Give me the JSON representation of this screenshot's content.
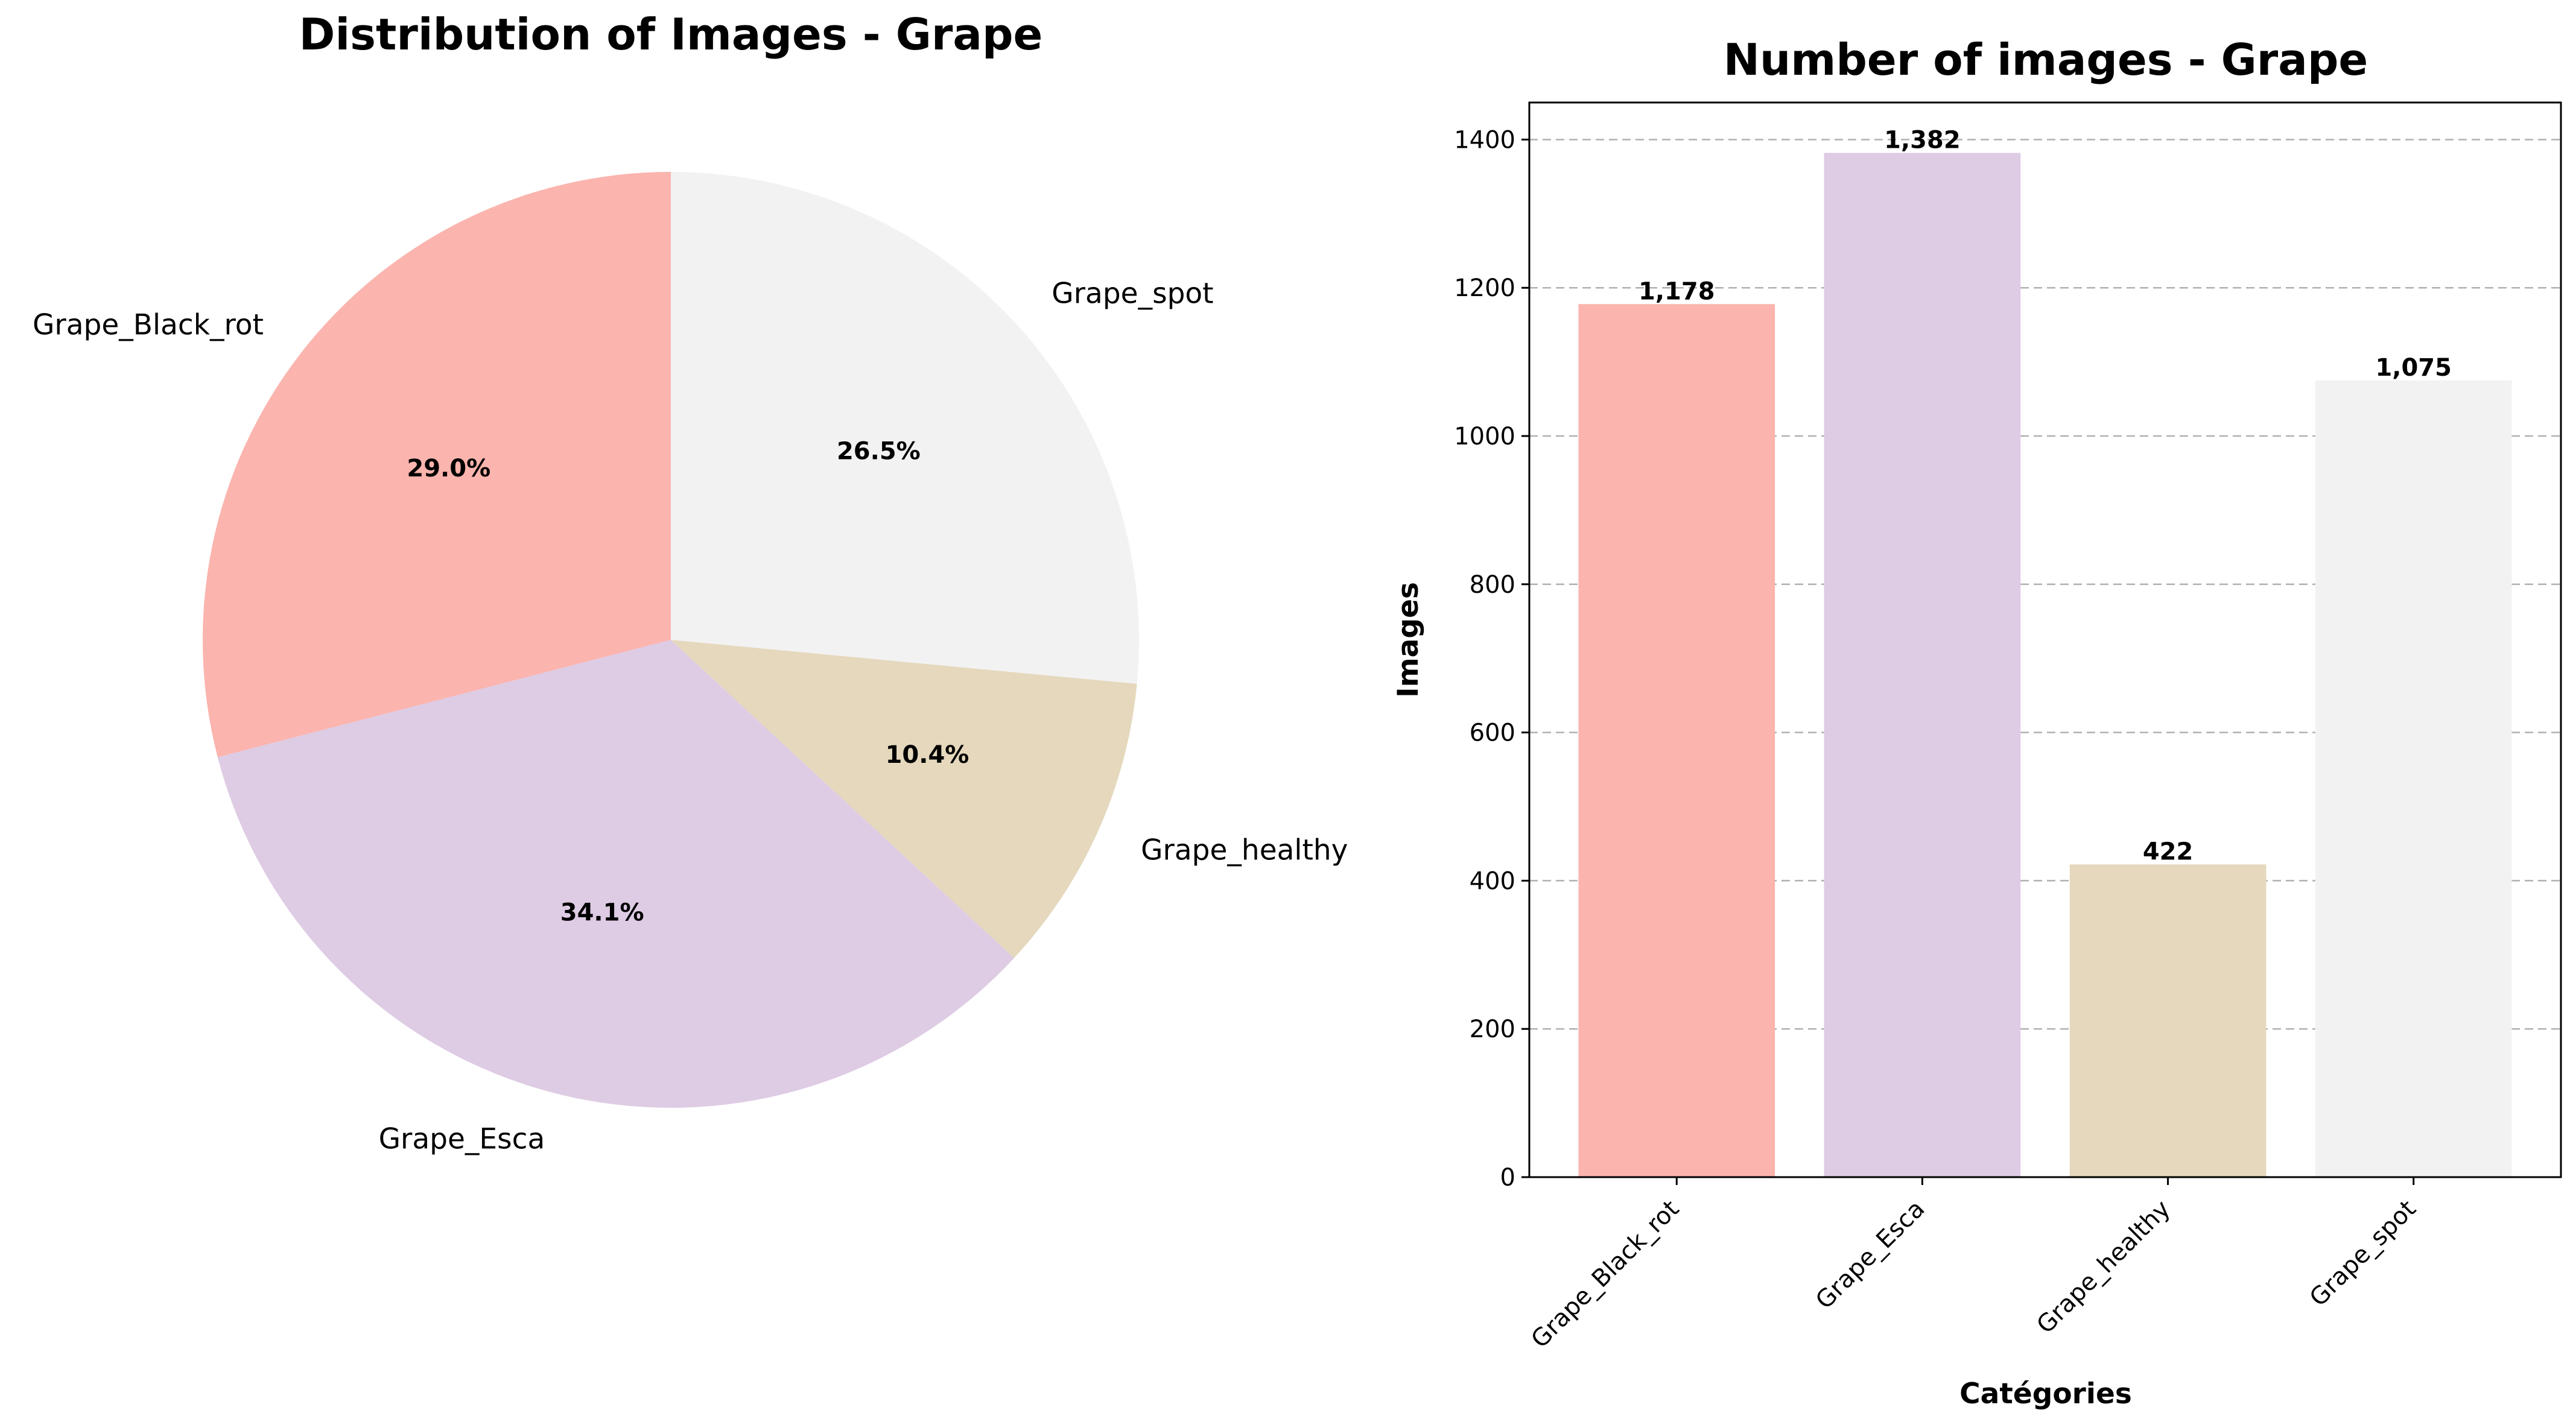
{
  "chart_data": [
    {
      "type": "pie",
      "title": "Distribution of Images - Grape",
      "start_angle_deg": 90,
      "direction": "counterclockwise",
      "slices": [
        {
          "label": "Grape_Black_rot",
          "value": 1178,
          "pct_label": "29.0%",
          "color": "#fbb4ae"
        },
        {
          "label": "Grape_Esca",
          "value": 1382,
          "pct_label": "34.1%",
          "color": "#decbe4"
        },
        {
          "label": "Grape_healthy",
          "value": 422,
          "pct_label": "10.4%",
          "color": "#e5d8bd"
        },
        {
          "label": "Grape_spot",
          "value": 1075,
          "pct_label": "26.5%",
          "color": "#f2f2f2"
        }
      ]
    },
    {
      "type": "bar",
      "title": "Number of images - Grape",
      "xlabel": "Catégories",
      "ylabel": "Images",
      "categories": [
        "Grape_Black_rot",
        "Grape_Esca",
        "Grape_healthy",
        "Grape_spot"
      ],
      "values": [
        1178,
        1382,
        422,
        1075
      ],
      "value_labels": [
        "1,178",
        "1,382",
        "422",
        "1,075"
      ],
      "colors": [
        "#fbb4ae",
        "#decbe4",
        "#e5d8bd",
        "#f2f2f2"
      ],
      "ylim": [
        0,
        1450
      ],
      "yticks": [
        0,
        200,
        400,
        600,
        800,
        1000,
        1200,
        1400
      ],
      "grid": "y-dashed"
    }
  ]
}
